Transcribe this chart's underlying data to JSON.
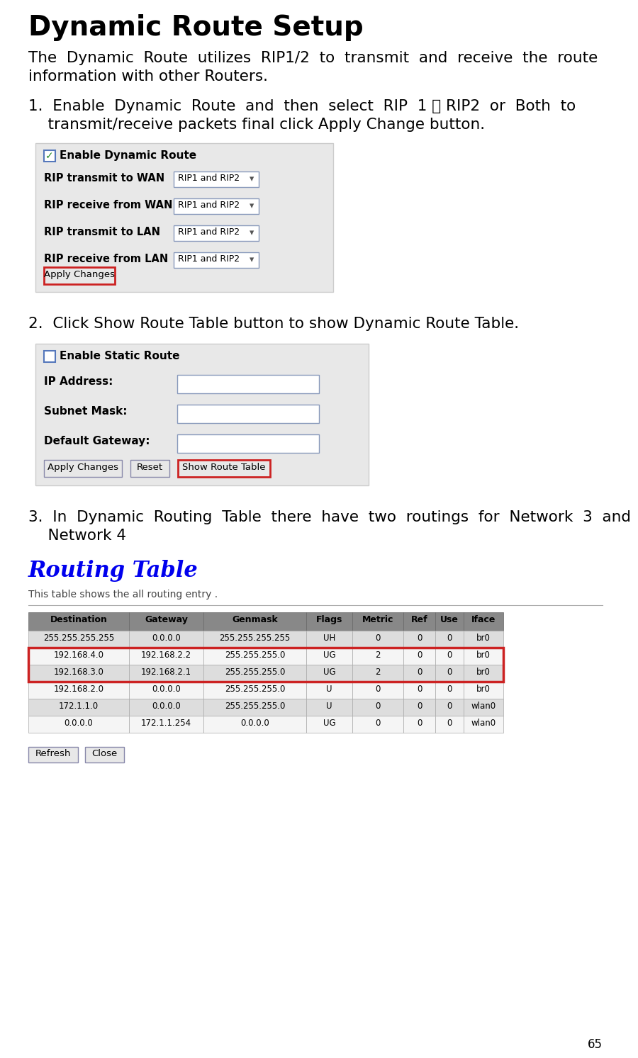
{
  "title": "Dynamic Route Setup",
  "page_number": "65",
  "bg_color": "#ffffff",
  "title_color": "#000000",
  "title_fontsize": 28,
  "body_fontsize": 15.5,
  "panel1_rows": [
    "RIP transmit to WAN",
    "RIP receive from WAN",
    "RIP transmit to LAN",
    "RIP receive from LAN"
  ],
  "panel1_enable_label": "Enable Dynamic Route",
  "panel1_dropdown_text": "RIP1 and RIP2",
  "panel1_btn_text": "Apply Changes",
  "panel2_enable_label": "Enable Static Route",
  "panel2_fields": [
    "IP Address:",
    "Subnet Mask:",
    "Default Gateway:"
  ],
  "panel2_btn1": "Apply Changes",
  "panel2_btn2": "Reset",
  "panel2_btn3": "Show Route Table",
  "step1_line1": "1.  Enable  Dynamic  Route  and  then  select  RIP  1 、 RIP2  or  Both  to",
  "step1_line2": "    transmit/receive packets final click Apply Change button.",
  "step2_text": "2.  Click Show Route Table button to show Dynamic Route Table.",
  "step3_line1": "3.  In  Dynamic  Routing  Table  there  have  two  routings  for  Network  3  and",
  "step3_line2": "    Network 4",
  "para_line1": "The  Dynamic  Route  utilizes  RIP1/2  to  transmit  and  receive  the  route",
  "para_line2": "information with other Routers.",
  "routing_title": "Routing Table",
  "routing_title_color": "#0000ee",
  "routing_subtitle": "This table shows the all routing entry .",
  "table_headers": [
    "Destination",
    "Gateway",
    "Genmask",
    "Flags",
    "Metric",
    "Ref",
    "Use",
    "Iface"
  ],
  "table_rows": [
    [
      "255.255.255.255",
      "0.0.0.0",
      "255.255.255.255",
      "UH",
      "0",
      "0",
      "0",
      "br0"
    ],
    [
      "192.168.4.0",
      "192.168.2.2",
      "255.255.255.0",
      "UG",
      "2",
      "0",
      "0",
      "br0"
    ],
    [
      "192.168.3.0",
      "192.168.2.1",
      "255.255.255.0",
      "UG",
      "2",
      "0",
      "0",
      "br0"
    ],
    [
      "192.168.2.0",
      "0.0.0.0",
      "255.255.255.0",
      "U",
      "0",
      "0",
      "0",
      "br0"
    ],
    [
      "172.1.1.0",
      "0.0.0.0",
      "255.255.255.0",
      "U",
      "0",
      "0",
      "0",
      "wlan0"
    ],
    [
      "0.0.0.0",
      "172.1.1.254",
      "0.0.0.0",
      "UG",
      "0",
      "0",
      "0",
      "wlan0"
    ]
  ],
  "highlighted_rows": [
    1,
    2
  ],
  "refresh_btn": "Refresh",
  "close_btn": "Close",
  "panel_bg": "#e8e8e8",
  "panel_border": "#cccccc",
  "checkbox_border": "#5577bb",
  "dropdown_border": "#8899bb",
  "field_border": "#8899bb",
  "btn_border_normal": "#8888aa",
  "btn_border_red": "#cc2222",
  "table_header_bg": "#888888",
  "table_row_odd": "#dddddd",
  "table_row_even": "#f5f5f5",
  "table_cell_border": "#aaaaaa",
  "hr_color": "#aaaaaa"
}
